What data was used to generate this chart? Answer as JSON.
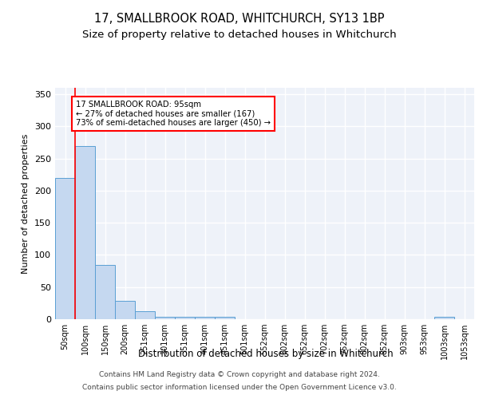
{
  "title1": "17, SMALLBROOK ROAD, WHITCHURCH, SY13 1BP",
  "title2": "Size of property relative to detached houses in Whitchurch",
  "xlabel": "Distribution of detached houses by size in Whitchurch",
  "ylabel": "Number of detached properties",
  "categories": [
    "50sqm",
    "100sqm",
    "150sqm",
    "200sqm",
    "251sqm",
    "301sqm",
    "351sqm",
    "401sqm",
    "451sqm",
    "501sqm",
    "552sqm",
    "602sqm",
    "652sqm",
    "702sqm",
    "752sqm",
    "802sqm",
    "852sqm",
    "903sqm",
    "953sqm",
    "1003sqm",
    "1053sqm"
  ],
  "values": [
    220,
    270,
    85,
    29,
    13,
    4,
    4,
    4,
    4,
    0,
    0,
    0,
    0,
    0,
    0,
    0,
    0,
    0,
    0,
    4,
    0
  ],
  "bar_color": "#c5d8f0",
  "bar_edge_color": "#5a9fd4",
  "marker_label_line1": "17 SMALLBROOK ROAD: 95sqm",
  "marker_label_line2": "← 27% of detached houses are smaller (167)",
  "marker_label_line3": "73% of semi-detached houses are larger (450) →",
  "vline_x_index": 1,
  "ylim": [
    0,
    360
  ],
  "yticks": [
    0,
    50,
    100,
    150,
    200,
    250,
    300,
    350
  ],
  "footer1": "Contains HM Land Registry data © Crown copyright and database right 2024.",
  "footer2": "Contains public sector information licensed under the Open Government Licence v3.0.",
  "bg_color": "#eef2f9",
  "grid_color": "#ffffff",
  "title1_fontsize": 10.5,
  "title2_fontsize": 9.5,
  "bar_linewidth": 0.7
}
